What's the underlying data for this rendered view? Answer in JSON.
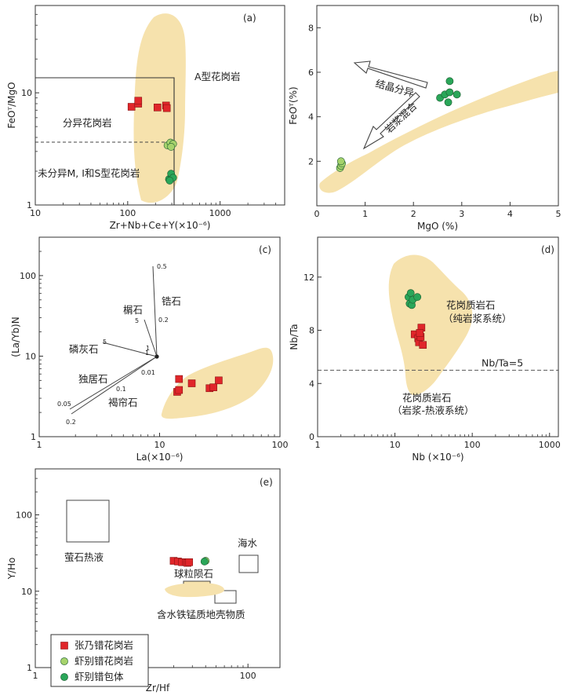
{
  "colors": {
    "field": "#f6e2ad",
    "red": "#e0262a",
    "lightgreen": "#a6d36c",
    "green": "#2aa659",
    "axis": "#333333"
  },
  "chart_data": [
    {
      "panel": "(a)",
      "type": "scatter",
      "xlabel": "Zr+Nb+Ce+Y(×10⁻⁶)",
      "ylabel": "FeOᵀ/MgO",
      "xscale": "log",
      "yscale": "log",
      "xlim": [
        10,
        5000
      ],
      "ylim": [
        1,
        60
      ],
      "xticks": [
        {
          "v": 10,
          "t": "10"
        },
        {
          "v": 100,
          "t": "100"
        },
        {
          "v": 1000,
          "t": "1000"
        }
      ],
      "yticks": [
        {
          "v": 1,
          "t": "1"
        },
        {
          "v": 10,
          "t": "10"
        }
      ],
      "labels": {
        "a": "A型花岗岩",
        "fg": "分异花岗岩",
        "ot": "未分异M, I和S型花岗岩"
      },
      "series": [
        {
          "name": "张乃错花岗岩",
          "marker": "square",
          "color": "red",
          "points": [
            [
              110,
              7.5
            ],
            [
              130,
              8.0
            ],
            [
              130,
              8.5
            ],
            [
              210,
              7.4
            ],
            [
              260,
              7.7
            ],
            [
              265,
              7.3
            ]
          ]
        },
        {
          "name": "虾别错花岗岩",
          "marker": "circle",
          "color": "lightgreen",
          "points": [
            [
              270,
              3.4
            ],
            [
              290,
              3.6
            ],
            [
              310,
              3.5
            ],
            [
              295,
              3.3
            ]
          ]
        },
        {
          "name": "虾别错包体",
          "marker": "circle",
          "color": "green",
          "points": [
            [
              280,
              1.7
            ],
            [
              300,
              1.8
            ],
            [
              295,
              1.9
            ],
            [
              310,
              1.75
            ],
            [
              285,
              1.65
            ]
          ]
        }
      ]
    },
    {
      "panel": "(b)",
      "type": "scatter",
      "xlabel": "MgO (%)",
      "ylabel": "FeOᵀ(%)",
      "xscale": "linear",
      "yscale": "linear",
      "xlim": [
        0,
        5
      ],
      "ylim": [
        0,
        9
      ],
      "xticks": [
        {
          "v": 0,
          "t": "0"
        },
        {
          "v": 1,
          "t": "1"
        },
        {
          "v": 2,
          "t": "2"
        },
        {
          "v": 3,
          "t": "3"
        },
        {
          "v": 4,
          "t": "4"
        },
        {
          "v": 5,
          "t": "5"
        }
      ],
      "yticks": [
        {
          "v": 2,
          "t": "2"
        },
        {
          "v": 4,
          "t": "4"
        },
        {
          "v": 6,
          "t": "6"
        },
        {
          "v": 8,
          "t": "8"
        }
      ],
      "labels": {
        "cryst": "结晶分异",
        "mix": "岩浆混合"
      },
      "series": [
        {
          "name": "虾别错花岗岩",
          "marker": "circle",
          "color": "lightgreen",
          "points": [
            [
              0.48,
              1.7
            ],
            [
              0.5,
              1.8
            ],
            [
              0.52,
              1.9
            ],
            [
              0.5,
              2.0
            ]
          ]
        },
        {
          "name": "虾别错包体",
          "marker": "circle",
          "color": "green",
          "points": [
            [
              2.55,
              4.85
            ],
            [
              2.65,
              5.0
            ],
            [
              2.75,
              5.1
            ],
            [
              2.72,
              4.65
            ],
            [
              2.9,
              5.0
            ],
            [
              2.75,
              5.6
            ]
          ]
        }
      ]
    },
    {
      "panel": "(c)",
      "type": "scatter",
      "xlabel": "La(×10⁻⁶)",
      "ylabel": "(La/Yb)N",
      "xscale": "log",
      "yscale": "log",
      "xlim": [
        1,
        100
      ],
      "ylim": [
        1,
        300
      ],
      "xticks": [
        {
          "v": 1,
          "t": "1"
        },
        {
          "v": 10,
          "t": "10"
        },
        {
          "v": 100,
          "t": "100"
        }
      ],
      "yticks": [
        {
          "v": 1,
          "t": "1"
        },
        {
          "v": 10,
          "t": "10"
        },
        {
          "v": 100,
          "t": "100"
        }
      ],
      "labels": {
        "zircon": "锆石",
        "mon": "榍石",
        "ap": "磷灰石",
        "monz": "独居石",
        "allan": "褐帘石"
      },
      "vector_ticks": {
        "z1": "0.5",
        "z2": "0.2",
        "m1": "5",
        "m2": "1",
        "a1": "5",
        "a2": "1",
        "o1": "0.01",
        "o2": "0.1",
        "o3": "0.05",
        "o4": "0.2"
      },
      "series": [
        {
          "name": "张乃错花岗岩",
          "marker": "square",
          "color": "red",
          "points": [
            [
              14,
              3.6
            ],
            [
              14.5,
              3.8
            ],
            [
              14.5,
              5.2
            ],
            [
              18.5,
              4.6
            ],
            [
              26,
              4.0
            ],
            [
              28,
              4.1
            ],
            [
              31,
              5.0
            ]
          ]
        }
      ]
    },
    {
      "panel": "(d)",
      "type": "scatter",
      "xlabel": "Nb (×10⁻⁶)",
      "ylabel": "Nb/Ta",
      "xscale": "log",
      "yscale": "linear",
      "xlim": [
        1,
        1300
      ],
      "ylim": [
        0,
        15
      ],
      "xticks": [
        {
          "v": 1,
          "t": "1"
        },
        {
          "v": 10,
          "t": "10"
        },
        {
          "v": 100,
          "t": "100"
        },
        {
          "v": 1000,
          "t": "1000"
        }
      ],
      "yticks": [
        {
          "v": 0,
          "t": "0"
        },
        {
          "v": 4,
          "t": "4"
        },
        {
          "v": 8,
          "t": "8"
        },
        {
          "v": 12,
          "t": "12"
        }
      ],
      "refline": {
        "y": 5,
        "label": "Nb/Ta=5"
      },
      "labels": {
        "top1": "花岗质岩石",
        "top2": "（纯岩浆系统）",
        "bot1": "花岗质岩石",
        "bot2": "（岩浆-热液系统）"
      },
      "series": [
        {
          "name": "张乃错花岗岩",
          "marker": "square",
          "color": "red",
          "points": [
            [
              18,
              7.7
            ],
            [
              20,
              7.4
            ],
            [
              20.5,
              7.1
            ],
            [
              21.5,
              7.5
            ],
            [
              22,
              8.2
            ],
            [
              23,
              6.9
            ],
            [
              21,
              7.8
            ]
          ]
        },
        {
          "name": "虾别错包体",
          "marker": "circle",
          "color": "green",
          "points": [
            [
              15,
              10.5
            ],
            [
              15.5,
              10.0
            ],
            [
              16,
              10.8
            ],
            [
              16.5,
              9.9
            ],
            [
              17,
              10.3
            ],
            [
              19.5,
              10.5
            ]
          ]
        }
      ]
    },
    {
      "panel": "(e)",
      "type": "scatter",
      "xlabel": "Zr/Hf",
      "ylabel": "Y/Ho",
      "xscale": "log",
      "yscale": "log",
      "xlim": [
        1,
        200
      ],
      "ylim": [
        1,
        400
      ],
      "xticks": [
        {
          "v": 1,
          "t": "1"
        },
        {
          "v": 10,
          "t": "10"
        },
        {
          "v": 100,
          "t": "100"
        }
      ],
      "yticks": [
        {
          "v": 1,
          "t": "1"
        },
        {
          "v": 10,
          "t": "10"
        },
        {
          "v": 100,
          "t": "100"
        }
      ],
      "labels": {
        "fluor": "萤石热液",
        "sea": "海水",
        "chond": "球粒陨石",
        "crust": "含水铁锰质地壳物质"
      },
      "series": [
        {
          "name": "张乃错花岗岩",
          "marker": "square",
          "color": "red",
          "points": [
            [
              20,
              25
            ],
            [
              22,
              24.5
            ],
            [
              24,
              24
            ],
            [
              26,
              24
            ],
            [
              27,
              23.5
            ],
            [
              28,
              24
            ]
          ]
        },
        {
          "name": "虾别错花岗岩",
          "marker": "circle",
          "color": "lightgreen",
          "points": [
            [
              40,
              25
            ]
          ]
        },
        {
          "name": "虾别错包体",
          "marker": "circle",
          "color": "green",
          "points": [
            [
              39,
              24.5
            ]
          ]
        }
      ]
    }
  ],
  "legend": [
    {
      "label": "张乃错花岗岩",
      "marker": "square",
      "color": "red"
    },
    {
      "label": "虾别错花岗岩",
      "marker": "circle",
      "color": "lightgreen"
    },
    {
      "label": "虾别错包体",
      "marker": "circle",
      "color": "green"
    }
  ]
}
